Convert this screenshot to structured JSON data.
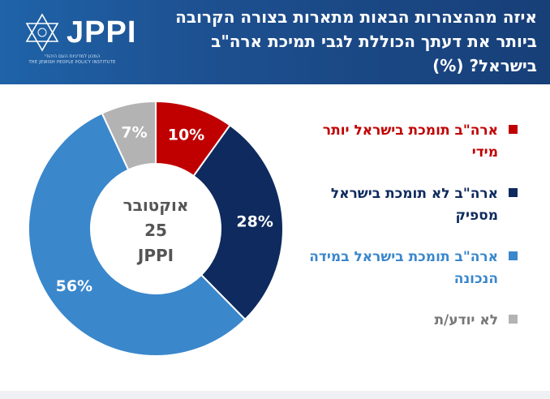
{
  "header": {
    "title": "איזה מההצהרות הבאות מתארות בצורה הקרובה ביותר את דעתך הכוללת לגבי תמיכת ארה\"ב בישראל? (%)",
    "logo": {
      "text": "JPPI",
      "subtitle_he": "המכון למדיניות העם היהודי",
      "subtitle_en": "THE JEWISH PEOPLE POLICY INSTITUTE"
    }
  },
  "chart_data": {
    "type": "pie",
    "title": "איזה מההצהרות הבאות מתארות בצורה הקרובה ביותר את דעתך הכוללת לגבי תמיכת ארה\"ב בישראל? (%)",
    "center_label": [
      "אוקטובר",
      "25",
      "JPPI"
    ],
    "slices": [
      {
        "label": "ארה\"ב תומכת בישראל יותר מידי",
        "value": 10,
        "display": "10%",
        "color": "#c00000",
        "text_color": "#c00000"
      },
      {
        "label": "ארה\"ב לא תומכת בישראל מספיק",
        "value": 28,
        "display": "28%",
        "color": "#0e2a5e",
        "text_color": "#0e2a5e"
      },
      {
        "label": "ארה\"ב תומכת בישראל במידה הנכונה",
        "value": 56,
        "display": "56%",
        "color": "#3a87cc",
        "text_color": "#3a87cc"
      },
      {
        "label": "לא יודע/ת",
        "value": 7,
        "display": "7%",
        "color": "#b3b3b3",
        "text_color": "#777777"
      }
    ]
  }
}
